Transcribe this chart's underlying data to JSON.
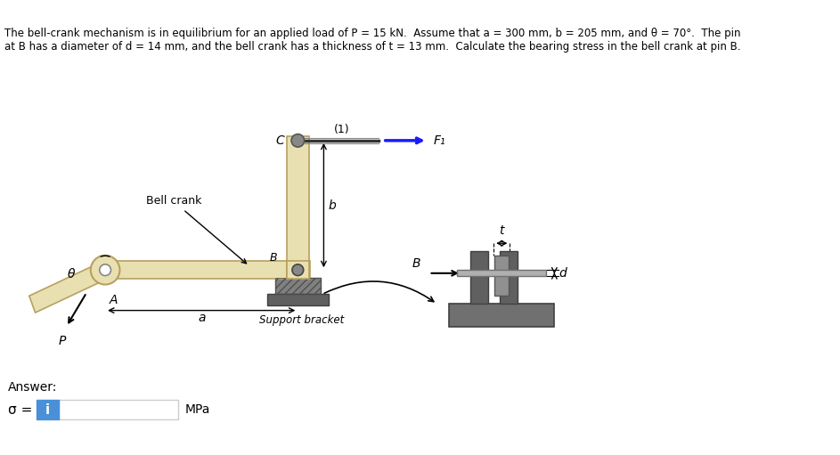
{
  "title_text": "The bell-crank mechanism is in equilibrium for an applied load of P = 15 kN.  Assume that a = 300 mm, b = 205 mm, and θ = 70°.  The pin\nat B has a diameter of d = 14 mm, and the bell crank has a thickness of t = 13 mm.  Calculate the bearing stress in the bell crank at pin B.",
  "bg_color": "#ffffff",
  "crank_color": "#e8e0b0",
  "crank_edge": "#b8a060",
  "bracket_color": "#707070",
  "bracket_edge": "#505050",
  "pin_color": "#505050",
  "arrow_color": "#1a1aff",
  "dim_color": "#000000",
  "label_color": "#000000",
  "answer_box_color": "#4a90d9",
  "answer_label": "Answer:",
  "sigma_label": "σ =",
  "mpa_label": "MPa",
  "f1_label": "F₁",
  "label_1": "(1)",
  "b_label": "b",
  "a_label": "a",
  "t_label": "t",
  "d_label": "d",
  "B_label": "B",
  "C_label": "C",
  "A_label": "A",
  "theta_label": "θ",
  "P_label": "P",
  "bell_crank_label": "Bell crank",
  "support_bracket_label": "Support bracket"
}
